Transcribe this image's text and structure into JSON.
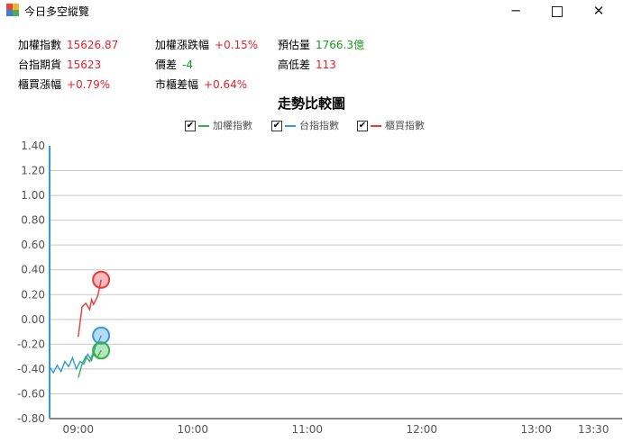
{
  "window": {
    "title": "今日多空縱覽"
  },
  "stats": [
    {
      "label": "加權指數",
      "value": "15626.87",
      "color": "red"
    },
    {
      "label": "加權漲跌幅",
      "value": "+0.15%",
      "color": "red"
    },
    {
      "label": "預估量",
      "value": "1766.3億",
      "color": "green"
    },
    {
      "label": "台指期貨",
      "value": "15623",
      "color": "red"
    },
    {
      "label": "價差",
      "value": "-4",
      "color": "green"
    },
    {
      "label": "高低差",
      "value": "113",
      "color": "red"
    },
    {
      "label": "櫃買漲幅",
      "value": "+0.79%",
      "color": "red"
    },
    {
      "label": "市櫃差幅",
      "value": "+0.64%",
      "color": "red"
    }
  ],
  "chart_title": "走勢比較圖",
  "legend": [
    {
      "label": "加權指數",
      "checked": true,
      "color": "#33b24a"
    },
    {
      "label": "台指指數",
      "checked": true,
      "color": "#3399dd"
    },
    {
      "label": "櫃買指數",
      "checked": true,
      "color": "#e83a3a"
    }
  ],
  "chart_data": {
    "type": "line",
    "title": "走勢比較圖",
    "xlabel": "",
    "ylabel": "",
    "ylim": [
      -0.8,
      1.4
    ],
    "ytick_labels": [
      "1.40",
      "1.20",
      "1.00",
      "0.80",
      "0.60",
      "0.40",
      "0.20",
      "0.00",
      "-0.20",
      "-0.40",
      "-0.60",
      "-0.80"
    ],
    "xtick_labels": [
      "09:00",
      "10:00",
      "11:00",
      "12:00",
      "13:00",
      "13:30"
    ],
    "x_range": [
      "08:45",
      "13:45"
    ],
    "grid": "horizontal",
    "legend_position": "top-center",
    "series": [
      {
        "name": "加權指數",
        "color": "#33b24a",
        "x": [
          "09:00",
          "09:02",
          "09:04",
          "09:06",
          "09:08",
          "09:10",
          "09:12"
        ],
        "values": [
          -0.47,
          -0.36,
          -0.3,
          -0.34,
          -0.26,
          -0.31,
          -0.25
        ],
        "last_value": -0.25
      },
      {
        "name": "台指指數",
        "color": "#3399dd",
        "x": [
          "08:45",
          "08:47",
          "08:49",
          "08:51",
          "08:53",
          "08:55",
          "08:57",
          "08:59",
          "09:01",
          "09:03",
          "09:05",
          "09:07",
          "09:09",
          "09:11",
          "09:12"
        ],
        "values": [
          -0.38,
          -0.43,
          -0.37,
          -0.42,
          -0.34,
          -0.38,
          -0.31,
          -0.4,
          -0.34,
          -0.36,
          -0.28,
          -0.33,
          -0.22,
          -0.17,
          -0.13
        ],
        "last_value": -0.13
      },
      {
        "name": "櫃買指數",
        "color": "#e83a3a",
        "x": [
          "09:00",
          "09:01",
          "09:02",
          "09:04",
          "09:06",
          "09:07",
          "09:08",
          "09:10",
          "09:11",
          "09:12"
        ],
        "values": [
          -0.14,
          -0.02,
          0.1,
          0.13,
          0.08,
          0.16,
          0.12,
          0.18,
          0.24,
          0.32
        ],
        "last_value": 0.32
      }
    ]
  }
}
